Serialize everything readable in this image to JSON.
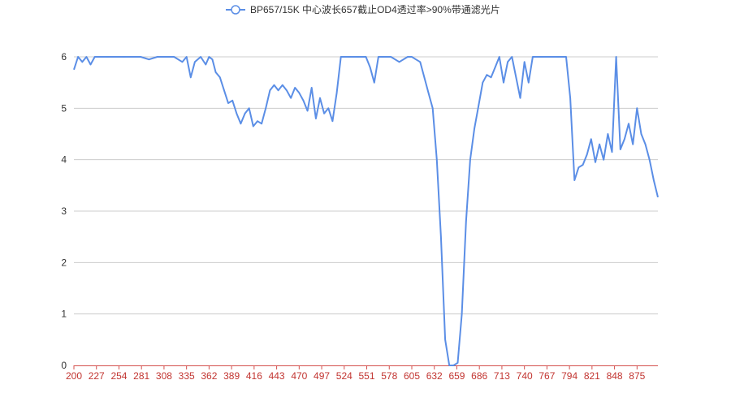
{
  "chart_data": {
    "type": "line",
    "title": "",
    "legend": {
      "position": "top-center",
      "entries": [
        "BP657/15K 中心波长657截止OD4透过率>90%带通滤光片"
      ]
    },
    "xlabel": "",
    "ylabel": "",
    "xlim": [
      200,
      900
    ],
    "ylim": [
      0,
      6
    ],
    "y_ticks": [
      "0",
      "1",
      "2",
      "3",
      "4",
      "5",
      "6"
    ],
    "x_ticks": [
      "200",
      "227",
      "254",
      "281",
      "308",
      "335",
      "362",
      "389",
      "416",
      "443",
      "470",
      "497",
      "524",
      "551",
      "578",
      "605",
      "632",
      "659",
      "686",
      "713",
      "740",
      "767",
      "794",
      "821",
      "848",
      "875"
    ],
    "grid": true,
    "colors": {
      "line": "#5b8ee6",
      "xaxis": "#d4514e",
      "xtick_text": "#c23531",
      "grid": "#cccccc",
      "text": "#333333"
    },
    "series": [
      {
        "name": "BP657/15K 中心波长657截止OD4透过率>90%带通滤光片",
        "x": [
          200,
          205,
          210,
          215,
          220,
          225,
          240,
          260,
          280,
          290,
          300,
          320,
          330,
          335,
          340,
          345,
          352,
          358,
          362,
          366,
          370,
          375,
          380,
          385,
          390,
          395,
          400,
          405,
          410,
          415,
          420,
          425,
          430,
          435,
          440,
          445,
          450,
          455,
          460,
          465,
          470,
          475,
          480,
          485,
          490,
          495,
          500,
          505,
          510,
          515,
          520,
          530,
          540,
          550,
          555,
          560,
          565,
          570,
          580,
          590,
          600,
          605,
          610,
          615,
          620,
          625,
          630,
          635,
          640,
          645,
          650,
          655,
          660,
          665,
          670,
          675,
          680,
          685,
          690,
          695,
          700,
          705,
          710,
          715,
          720,
          725,
          730,
          735,
          740,
          745,
          750,
          760,
          780,
          790,
          795,
          800,
          805,
          810,
          815,
          820,
          825,
          830,
          835,
          840,
          845,
          850,
          855,
          860,
          865,
          870,
          875,
          880,
          885,
          890,
          895,
          900
        ],
        "values": [
          5.75,
          6.0,
          5.9,
          6.0,
          5.85,
          6.0,
          6.0,
          6.0,
          6.0,
          5.95,
          6.0,
          6.0,
          5.9,
          6.0,
          5.6,
          5.9,
          6.0,
          5.85,
          6.0,
          5.95,
          5.7,
          5.6,
          5.35,
          5.1,
          5.15,
          4.9,
          4.7,
          4.9,
          5.0,
          4.65,
          4.75,
          4.7,
          5.0,
          5.35,
          5.45,
          5.35,
          5.45,
          5.35,
          5.2,
          5.4,
          5.3,
          5.15,
          4.95,
          5.4,
          4.8,
          5.2,
          4.9,
          5.0,
          4.75,
          5.3,
          6.0,
          6.0,
          6.0,
          6.0,
          5.8,
          5.5,
          6.0,
          6.0,
          6.0,
          5.9,
          6.0,
          6.0,
          5.95,
          5.9,
          5.6,
          5.3,
          5.0,
          4.0,
          2.5,
          0.5,
          0.0,
          0.0,
          0.05,
          1.0,
          2.8,
          4.0,
          4.6,
          5.05,
          5.5,
          5.65,
          5.6,
          5.8,
          6.0,
          5.5,
          5.9,
          6.0,
          5.6,
          5.2,
          5.9,
          5.5,
          6.0,
          6.0,
          6.0,
          6.0,
          5.2,
          3.6,
          3.85,
          3.9,
          4.1,
          4.4,
          3.95,
          4.3,
          4.0,
          4.5,
          4.15,
          6.0,
          4.2,
          4.4,
          4.7,
          4.3,
          5.0,
          4.5,
          4.3,
          4.0,
          3.6,
          3.27
        ]
      }
    ]
  }
}
